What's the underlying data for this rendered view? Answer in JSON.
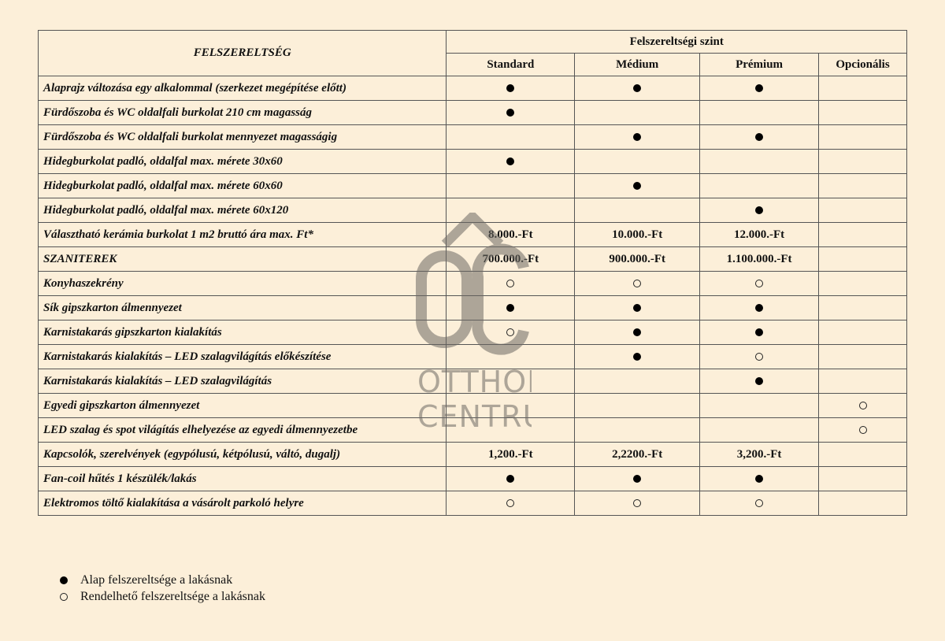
{
  "watermark": {
    "logo_text": "OTTHON CENTRUM",
    "line1": "OTTHON",
    "line2": "CENTRUM",
    "color": "#6d6a64"
  },
  "table": {
    "header_main": "FELSZERELTSÉG",
    "header_group": "Felszereltségi szint",
    "columns": [
      "Standard",
      "Médium",
      "Prémium",
      "Opcionális"
    ],
    "rows": [
      {
        "label": "Alaprajz változása egy alkalommal (szerkezet megépítése előtt)",
        "values": [
          "full",
          "full",
          "full",
          ""
        ]
      },
      {
        "label": "Fürdőszoba és WC oldalfali burkolat 210 cm magasság",
        "values": [
          "full",
          "",
          "",
          ""
        ]
      },
      {
        "label": "Fürdőszoba és WC oldalfali burkolat mennyezet magasságig",
        "values": [
          "",
          "full",
          "full",
          ""
        ]
      },
      {
        "label": "Hidegburkolat  padló, oldalfal max. mérete 30x60",
        "values": [
          "full",
          "",
          "",
          ""
        ]
      },
      {
        "label": "Hidegburkolat  padló, oldalfal  max. mérete 60x60",
        "values": [
          "",
          "full",
          "",
          ""
        ]
      },
      {
        "label": "Hidegburkolat  padló, oldalfal max. mérete 60x120",
        "values": [
          "",
          "",
          "full",
          ""
        ]
      },
      {
        "label": "Választható kerámia burkolat 1 m2 bruttó ára max. Ft*",
        "values": [
          "8.000.-Ft",
          "10.000.-Ft",
          "12.000.-Ft",
          ""
        ]
      },
      {
        "label": "SZANITEREK",
        "values": [
          "700.000.-Ft",
          "900.000.-Ft",
          "1.100.000.-Ft",
          ""
        ]
      },
      {
        "label": "Konyhaszekrény",
        "values": [
          "open",
          "open",
          "open",
          ""
        ]
      },
      {
        "label": "Sík gipszkarton álmennyezet",
        "values": [
          "full",
          "full",
          "full",
          ""
        ]
      },
      {
        "label": "Karnistakarás gipszkarton kialakítás",
        "values": [
          "open",
          "full",
          "full",
          ""
        ]
      },
      {
        "label": "Karnistakarás kialakítás – LED szalagvilágítás előkészítése",
        "values": [
          "",
          "full",
          "open",
          ""
        ]
      },
      {
        "label": "Karnistakarás kialakítás – LED szalagvilágítás",
        "values": [
          "",
          "",
          "full",
          ""
        ]
      },
      {
        "label": "Egyedi gipszkarton álmennyezet",
        "values": [
          "",
          "",
          "",
          "open"
        ]
      },
      {
        "label": "LED szalag és spot világítás elhelyezése az egyedi álmennyezetbe",
        "values": [
          "",
          "",
          "",
          "open"
        ]
      },
      {
        "label": "Kapcsolók, szerelvények (egypólusú, kétpólusú, váltó, dugalj)",
        "values": [
          "1,200.-Ft",
          "2,2200.-Ft",
          "3,200.-Ft",
          ""
        ]
      },
      {
        "label": "Fan-coil hűtés 1 készülék/lakás",
        "values": [
          "full",
          "full",
          "full",
          ""
        ]
      },
      {
        "label": "Elektromos töltő kialakítása a vásárolt parkoló helyre",
        "values": [
          "open",
          "open",
          "open",
          ""
        ]
      }
    ]
  },
  "legend": [
    {
      "marker": "full",
      "text": "Alap felszereltsége a lakásnak"
    },
    {
      "marker": "open",
      "text": "Rendelhető felszereltsége a lakásnak"
    }
  ]
}
